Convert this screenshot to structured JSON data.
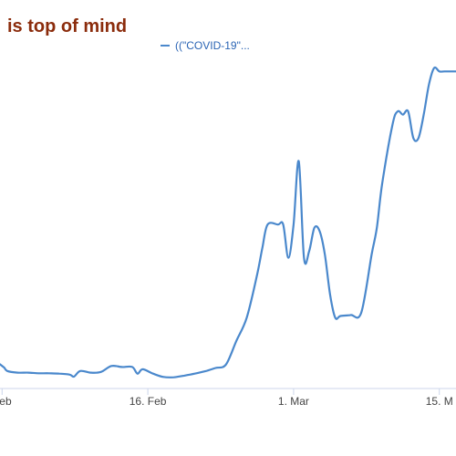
{
  "title": "is top of mind",
  "legend": {
    "label": "((\"COVID-19\"...",
    "color": "#4a88cc"
  },
  "chart_data": {
    "type": "line",
    "title": "is top of mind",
    "xlabel": "",
    "ylabel": "",
    "grid": false,
    "legend_position": "top-center",
    "x_ticks": [
      {
        "label": "Feb",
        "day": 2
      },
      {
        "label": "16. Feb",
        "day": 16
      },
      {
        "label": "1. Mar",
        "day": 30
      },
      {
        "label": "15. M",
        "day": 44
      }
    ],
    "xlim": [
      1.8,
      45.6
    ],
    "ylim": [
      0,
      100
    ],
    "series": [
      {
        "name": "((\"COVID-19\"...",
        "color": "#4a88cc",
        "days": [
          1.8,
          2.2,
          2.5,
          3.5,
          4.5,
          5.5,
          6.5,
          7.5,
          8.5,
          8.9,
          9.5,
          10.5,
          11.5,
          12.5,
          13.5,
          14.5,
          15.0,
          15.5,
          16.5,
          17.5,
          18.5,
          19.5,
          20.5,
          21.5,
          22.5,
          23.5,
          24.5,
          25.5,
          26.5,
          27.0,
          27.5,
          28.5,
          29.0,
          29.5,
          30.0,
          30.5,
          31.0,
          31.5,
          32.0,
          32.5,
          33.0,
          33.5,
          34.0,
          34.5,
          35.5,
          36.5,
          37.5,
          38.0,
          38.5,
          39.5,
          40.0,
          40.5,
          41.0,
          41.5,
          42.0,
          42.5,
          43.0,
          43.5,
          44.0,
          44.5,
          45.0,
          45.6
        ],
        "values": [
          7,
          6,
          5,
          4.5,
          4.5,
          4.3,
          4.3,
          4.2,
          3.9,
          3.3,
          5,
          4.5,
          4.7,
          6.5,
          6.2,
          6.2,
          4.2,
          5.5,
          4.2,
          3.2,
          3.1,
          3.6,
          4.2,
          4.9,
          5.9,
          6.9,
          14,
          21,
          34,
          42,
          49,
          49,
          49,
          39,
          49,
          68,
          39,
          41,
          48,
          47,
          40,
          28,
          21,
          21.5,
          21.8,
          22.5,
          40,
          48,
          61,
          79,
          83,
          82,
          83,
          75,
          75,
          82,
          91,
          96,
          95,
          95,
          95,
          95
        ]
      }
    ]
  }
}
